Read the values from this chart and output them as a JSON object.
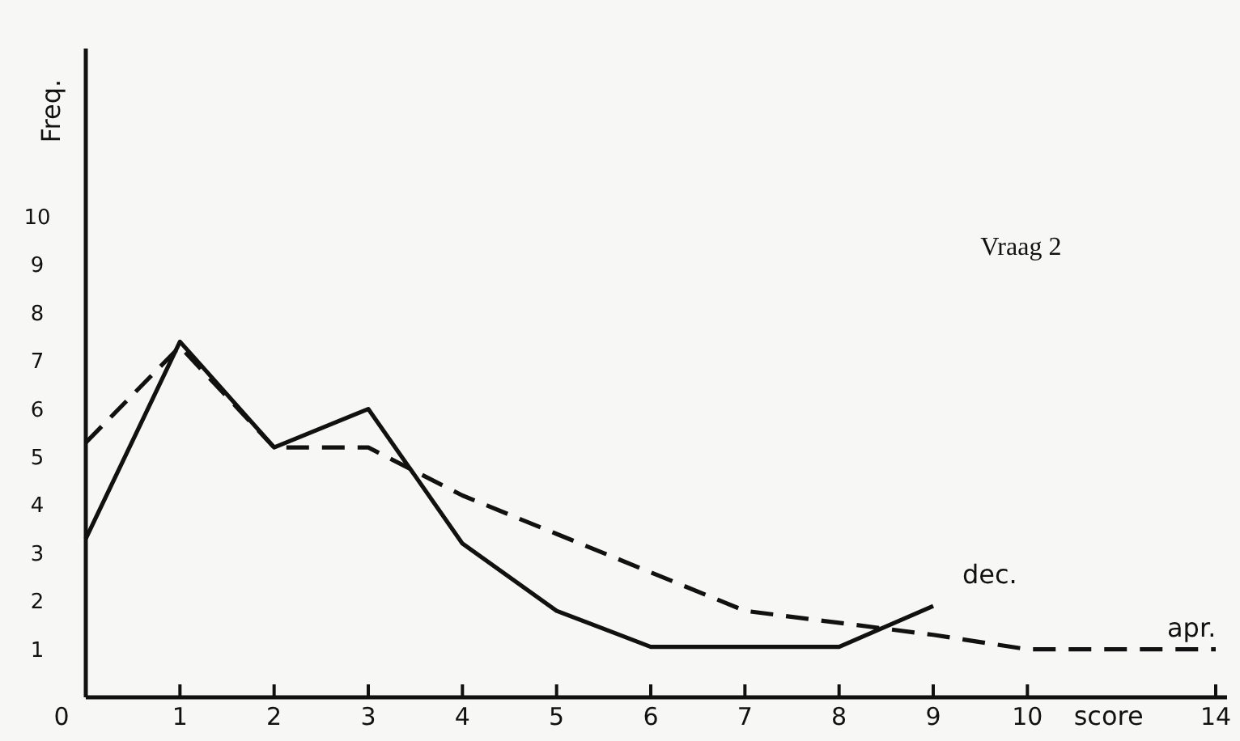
{
  "chart_data": {
    "type": "line",
    "xlabel": "score",
    "ylabel": "Freq.",
    "annotations": [
      "Vraag 2"
    ],
    "categories": [
      "0",
      "1",
      "2",
      "3",
      "4",
      "5",
      "6",
      "7",
      "8",
      "9",
      "10",
      null,
      "14"
    ],
    "series": [
      {
        "name": "dec.",
        "color": "#111111",
        "line_style": "solid",
        "values": [
          3.3,
          7.4,
          5.2,
          6.0,
          3.2,
          1.8,
          1.05,
          1.05,
          1.05,
          1.9,
          null,
          null,
          null
        ]
      },
      {
        "name": "apr.",
        "color": "#111111",
        "line_style": "dashed",
        "values": [
          5.3,
          7.3,
          5.2,
          5.2,
          4.2,
          3.4,
          2.6,
          1.8,
          1.55,
          1.3,
          1.0,
          1.0,
          1.0
        ]
      }
    ],
    "ylim": [
      0,
      13.5
    ],
    "yticks": [
      1,
      2,
      3,
      4,
      5,
      6,
      7,
      8,
      9,
      10
    ],
    "grid": false,
    "legend": false,
    "marker": "none"
  }
}
